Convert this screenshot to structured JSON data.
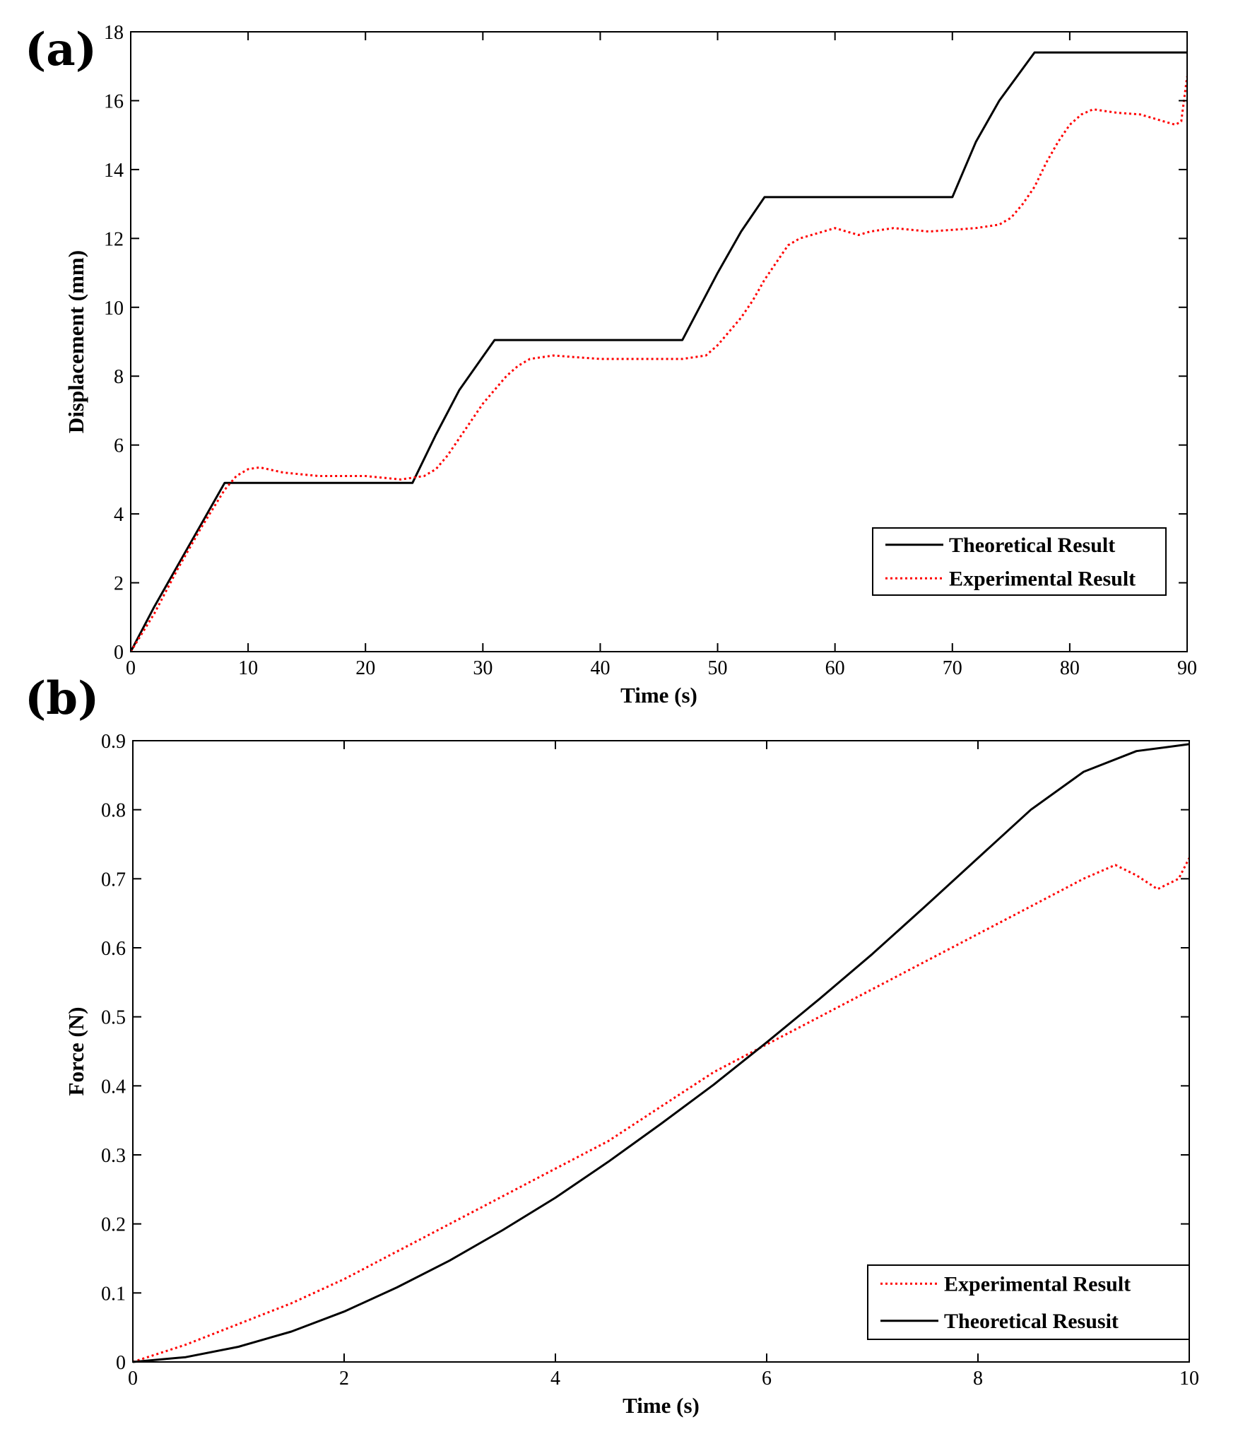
{
  "chart_data": [
    {
      "panel": "(a)",
      "type": "line",
      "title": "",
      "xlabel": "Time (s)",
      "ylabel": "Displacement (mm)",
      "xlim": [
        0,
        90
      ],
      "ylim": [
        0,
        18
      ],
      "xticks": [
        0,
        10,
        20,
        30,
        40,
        50,
        60,
        70,
        80,
        90
      ],
      "yticks": [
        0,
        2,
        4,
        6,
        8,
        10,
        12,
        14,
        16,
        18
      ],
      "grid": false,
      "legend_position": "bottom-right",
      "series": [
        {
          "name": "Theoretical Result",
          "color": "#000000",
          "style": "solid",
          "x": [
            0,
            2,
            4,
            6,
            8,
            24,
            26,
            28,
            31,
            47,
            48,
            50,
            52,
            54,
            70,
            72,
            74,
            77,
            90
          ],
          "y": [
            0,
            1.3,
            2.5,
            3.7,
            4.9,
            4.9,
            6.3,
            7.6,
            9.05,
            9.05,
            9.7,
            11.0,
            12.2,
            13.2,
            13.2,
            14.8,
            16.0,
            17.4,
            17.4
          ]
        },
        {
          "name": "Experimental Result",
          "color": "#ff0000",
          "style": "dotted",
          "x": [
            0,
            2,
            4,
            6,
            8,
            9,
            10,
            11,
            13,
            16,
            20,
            23,
            25,
            26,
            27,
            28,
            29,
            30,
            31,
            32,
            33,
            34,
            36,
            40,
            44,
            47,
            48,
            49,
            50,
            51,
            52,
            53,
            54,
            55,
            56,
            57,
            58,
            59,
            60,
            61,
            62,
            63,
            65,
            68,
            70,
            72,
            74,
            75,
            76,
            77,
            78,
            79,
            80,
            81,
            82,
            83,
            84,
            86,
            88,
            89,
            89.5,
            90
          ],
          "y": [
            0,
            1.1,
            2.4,
            3.6,
            4.7,
            5.1,
            5.3,
            5.35,
            5.2,
            5.1,
            5.1,
            5.0,
            5.1,
            5.3,
            5.7,
            6.2,
            6.7,
            7.2,
            7.6,
            8.0,
            8.3,
            8.5,
            8.6,
            8.5,
            8.5,
            8.5,
            8.55,
            8.6,
            8.9,
            9.3,
            9.7,
            10.2,
            10.8,
            11.3,
            11.8,
            12.0,
            12.1,
            12.2,
            12.3,
            12.2,
            12.1,
            12.2,
            12.3,
            12.2,
            12.25,
            12.3,
            12.4,
            12.6,
            13.0,
            13.5,
            14.2,
            14.8,
            15.3,
            15.6,
            15.75,
            15.7,
            15.65,
            15.6,
            15.4,
            15.3,
            15.4,
            16.7
          ]
        }
      ]
    },
    {
      "panel": "(b)",
      "type": "line",
      "title": "",
      "xlabel": "Time (s)",
      "ylabel": "Force (N)",
      "xlim": [
        0,
        10
      ],
      "ylim": [
        0,
        0.9
      ],
      "xticks": [
        0,
        2,
        4,
        6,
        8,
        10
      ],
      "yticks": [
        0,
        0.1,
        0.2,
        0.3,
        0.4,
        0.5,
        0.6,
        0.7,
        0.8,
        0.9
      ],
      "grid": false,
      "legend_position": "bottom-right",
      "series": [
        {
          "name": "Experimental Result",
          "color": "#ff0000",
          "style": "dotted",
          "x": [
            0,
            0.5,
            1,
            1.5,
            2,
            2.5,
            3,
            3.5,
            4,
            4.5,
            5,
            5.5,
            6,
            6.5,
            7,
            7.5,
            8,
            8.5,
            9,
            9.3,
            9.5,
            9.7,
            9.9,
            10
          ],
          "y": [
            0,
            0.025,
            0.055,
            0.085,
            0.12,
            0.16,
            0.2,
            0.24,
            0.28,
            0.32,
            0.37,
            0.42,
            0.46,
            0.5,
            0.54,
            0.58,
            0.62,
            0.66,
            0.7,
            0.72,
            0.705,
            0.685,
            0.7,
            0.73
          ]
        },
        {
          "name": "Theoretical Resusit",
          "color": "#000000",
          "style": "solid",
          "x": [
            0,
            0.5,
            1,
            1.5,
            2,
            2.5,
            3,
            3.5,
            4,
            4.5,
            5,
            5.5,
            6,
            6.5,
            7,
            7.5,
            8,
            8.5,
            9,
            9.5,
            10
          ],
          "y": [
            0,
            0.007,
            0.022,
            0.044,
            0.073,
            0.108,
            0.147,
            0.191,
            0.238,
            0.29,
            0.345,
            0.402,
            0.463,
            0.526,
            0.591,
            0.66,
            0.73,
            0.8,
            0.855,
            0.885,
            0.895
          ]
        }
      ]
    }
  ]
}
